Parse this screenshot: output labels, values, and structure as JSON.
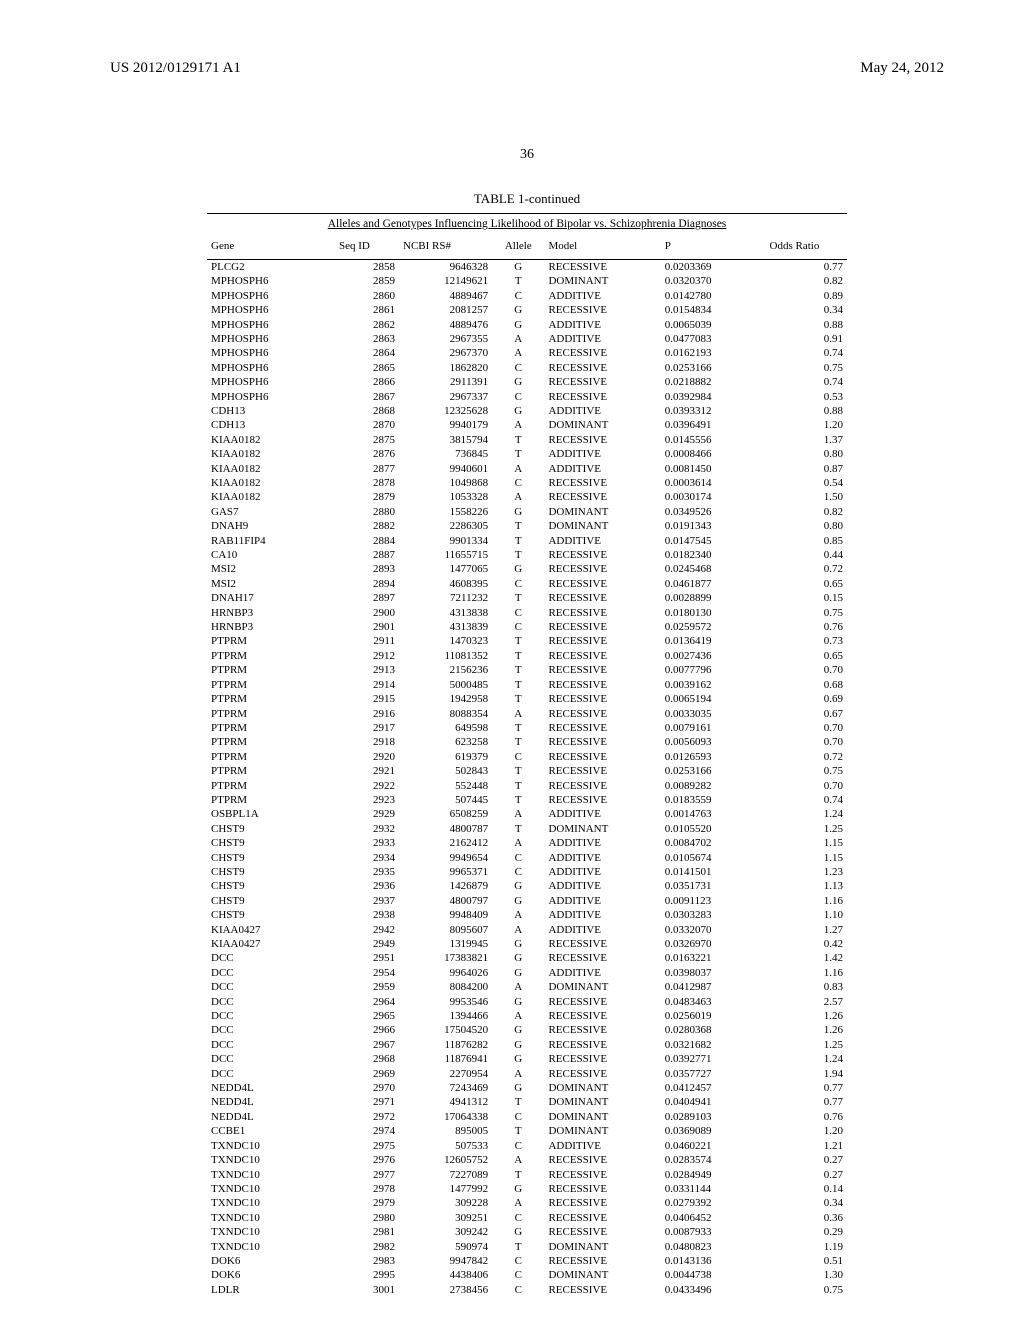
{
  "header": {
    "pub_number": "US 2012/0129171 A1",
    "pub_date": "May 24, 2012"
  },
  "page_number": "36",
  "table": {
    "title": "TABLE 1-continued",
    "caption": "Alleles and Genotypes Influencing Likelihood of Bipolar vs. Schizophrenia Diagnoses",
    "columns": [
      "Gene",
      "Seq ID",
      "NCBI RS#",
      "Allele",
      "Model",
      "P",
      "Odds Ratio"
    ],
    "rows": [
      [
        "PLCG2",
        "2858",
        "9646328",
        "G",
        "RECESSIVE",
        "0.0203369",
        "0.77"
      ],
      [
        "MPHOSPH6",
        "2859",
        "12149621",
        "T",
        "DOMINANT",
        "0.0320370",
        "0.82"
      ],
      [
        "MPHOSPH6",
        "2860",
        "4889467",
        "C",
        "ADDITIVE",
        "0.0142780",
        "0.89"
      ],
      [
        "MPHOSPH6",
        "2861",
        "2081257",
        "G",
        "RECESSIVE",
        "0.0154834",
        "0.34"
      ],
      [
        "MPHOSPH6",
        "2862",
        "4889476",
        "G",
        "ADDITIVE",
        "0.0065039",
        "0.88"
      ],
      [
        "MPHOSPH6",
        "2863",
        "2967355",
        "A",
        "ADDITIVE",
        "0.0477083",
        "0.91"
      ],
      [
        "MPHOSPH6",
        "2864",
        "2967370",
        "A",
        "RECESSIVE",
        "0.0162193",
        "0.74"
      ],
      [
        "MPHOSPH6",
        "2865",
        "1862820",
        "C",
        "RECESSIVE",
        "0.0253166",
        "0.75"
      ],
      [
        "MPHOSPH6",
        "2866",
        "2911391",
        "G",
        "RECESSIVE",
        "0.0218882",
        "0.74"
      ],
      [
        "MPHOSPH6",
        "2867",
        "2967337",
        "C",
        "RECESSIVE",
        "0.0392984",
        "0.53"
      ],
      [
        "CDH13",
        "2868",
        "12325628",
        "G",
        "ADDITIVE",
        "0.0393312",
        "0.88"
      ],
      [
        "CDH13",
        "2870",
        "9940179",
        "A",
        "DOMINANT",
        "0.0396491",
        "1.20"
      ],
      [
        "KIAA0182",
        "2875",
        "3815794",
        "T",
        "RECESSIVE",
        "0.0145556",
        "1.37"
      ],
      [
        "KIAA0182",
        "2876",
        "736845",
        "T",
        "ADDITIVE",
        "0.0008466",
        "0.80"
      ],
      [
        "KIAA0182",
        "2877",
        "9940601",
        "A",
        "ADDITIVE",
        "0.0081450",
        "0.87"
      ],
      [
        "KIAA0182",
        "2878",
        "1049868",
        "C",
        "RECESSIVE",
        "0.0003614",
        "0.54"
      ],
      [
        "KIAA0182",
        "2879",
        "1053328",
        "A",
        "RECESSIVE",
        "0.0030174",
        "1.50"
      ],
      [
        "GAS7",
        "2880",
        "1558226",
        "G",
        "DOMINANT",
        "0.0349526",
        "0.82"
      ],
      [
        "DNAH9",
        "2882",
        "2286305",
        "T",
        "DOMINANT",
        "0.0191343",
        "0.80"
      ],
      [
        "RAB11FIP4",
        "2884",
        "9901334",
        "T",
        "ADDITIVE",
        "0.0147545",
        "0.85"
      ],
      [
        "CA10",
        "2887",
        "11655715",
        "T",
        "RECESSIVE",
        "0.0182340",
        "0.44"
      ],
      [
        "MSI2",
        "2893",
        "1477065",
        "G",
        "RECESSIVE",
        "0.0245468",
        "0.72"
      ],
      [
        "MSI2",
        "2894",
        "4608395",
        "C",
        "RECESSIVE",
        "0.0461877",
        "0.65"
      ],
      [
        "DNAH17",
        "2897",
        "7211232",
        "T",
        "RECESSIVE",
        "0.0028899",
        "0.15"
      ],
      [
        "HRNBP3",
        "2900",
        "4313838",
        "C",
        "RECESSIVE",
        "0.0180130",
        "0.75"
      ],
      [
        "HRNBP3",
        "2901",
        "4313839",
        "C",
        "RECESSIVE",
        "0.0259572",
        "0.76"
      ],
      [
        "PTPRM",
        "2911",
        "1470323",
        "T",
        "RECESSIVE",
        "0.0136419",
        "0.73"
      ],
      [
        "PTPRM",
        "2912",
        "11081352",
        "T",
        "RECESSIVE",
        "0.0027436",
        "0.65"
      ],
      [
        "PTPRM",
        "2913",
        "2156236",
        "T",
        "RECESSIVE",
        "0.0077796",
        "0.70"
      ],
      [
        "PTPRM",
        "2914",
        "5000485",
        "T",
        "RECESSIVE",
        "0.0039162",
        "0.68"
      ],
      [
        "PTPRM",
        "2915",
        "1942958",
        "T",
        "RECESSIVE",
        "0.0065194",
        "0.69"
      ],
      [
        "PTPRM",
        "2916",
        "8088354",
        "A",
        "RECESSIVE",
        "0.0033035",
        "0.67"
      ],
      [
        "PTPRM",
        "2917",
        "649598",
        "T",
        "RECESSIVE",
        "0.0079161",
        "0.70"
      ],
      [
        "PTPRM",
        "2918",
        "623258",
        "T",
        "RECESSIVE",
        "0.0056093",
        "0.70"
      ],
      [
        "PTPRM",
        "2920",
        "619379",
        "C",
        "RECESSIVE",
        "0.0126593",
        "0.72"
      ],
      [
        "PTPRM",
        "2921",
        "502843",
        "T",
        "RECESSIVE",
        "0.0253166",
        "0.75"
      ],
      [
        "PTPRM",
        "2922",
        "552448",
        "T",
        "RECESSIVE",
        "0.0089282",
        "0.70"
      ],
      [
        "PTPRM",
        "2923",
        "507445",
        "T",
        "RECESSIVE",
        "0.0183559",
        "0.74"
      ],
      [
        "OSBPL1A",
        "2929",
        "6508259",
        "A",
        "ADDITIVE",
        "0.0014763",
        "1.24"
      ],
      [
        "CHST9",
        "2932",
        "4800787",
        "T",
        "DOMINANT",
        "0.0105520",
        "1.25"
      ],
      [
        "CHST9",
        "2933",
        "2162412",
        "A",
        "ADDITIVE",
        "0.0084702",
        "1.15"
      ],
      [
        "CHST9",
        "2934",
        "9949654",
        "C",
        "ADDITIVE",
        "0.0105674",
        "1.15"
      ],
      [
        "CHST9",
        "2935",
        "9965371",
        "C",
        "ADDITIVE",
        "0.0141501",
        "1.23"
      ],
      [
        "CHST9",
        "2936",
        "1426879",
        "G",
        "ADDITIVE",
        "0.0351731",
        "1.13"
      ],
      [
        "CHST9",
        "2937",
        "4800797",
        "G",
        "ADDITIVE",
        "0.0091123",
        "1.16"
      ],
      [
        "CHST9",
        "2938",
        "9948409",
        "A",
        "ADDITIVE",
        "0.0303283",
        "1.10"
      ],
      [
        "KIAA0427",
        "2942",
        "8095607",
        "A",
        "ADDITIVE",
        "0.0332070",
        "1.27"
      ],
      [
        "KIAA0427",
        "2949",
        "1319945",
        "G",
        "RECESSIVE",
        "0.0326970",
        "0.42"
      ],
      [
        "DCC",
        "2951",
        "17383821",
        "G",
        "RECESSIVE",
        "0.0163221",
        "1.42"
      ],
      [
        "DCC",
        "2954",
        "9964026",
        "G",
        "ADDITIVE",
        "0.0398037",
        "1.16"
      ],
      [
        "DCC",
        "2959",
        "8084200",
        "A",
        "DOMINANT",
        "0.0412987",
        "0.83"
      ],
      [
        "DCC",
        "2964",
        "9953546",
        "G",
        "RECESSIVE",
        "0.0483463",
        "2.57"
      ],
      [
        "DCC",
        "2965",
        "1394466",
        "A",
        "RECESSIVE",
        "0.0256019",
        "1.26"
      ],
      [
        "DCC",
        "2966",
        "17504520",
        "G",
        "RECESSIVE",
        "0.0280368",
        "1.26"
      ],
      [
        "DCC",
        "2967",
        "11876282",
        "G",
        "RECESSIVE",
        "0.0321682",
        "1.25"
      ],
      [
        "DCC",
        "2968",
        "11876941",
        "G",
        "RECESSIVE",
        "0.0392771",
        "1.24"
      ],
      [
        "DCC",
        "2969",
        "2270954",
        "A",
        "RECESSIVE",
        "0.0357727",
        "1.94"
      ],
      [
        "NEDD4L",
        "2970",
        "7243469",
        "G",
        "DOMINANT",
        "0.0412457",
        "0.77"
      ],
      [
        "NEDD4L",
        "2971",
        "4941312",
        "T",
        "DOMINANT",
        "0.0404941",
        "0.77"
      ],
      [
        "NEDD4L",
        "2972",
        "17064338",
        "C",
        "DOMINANT",
        "0.0289103",
        "0.76"
      ],
      [
        "CCBE1",
        "2974",
        "895005",
        "T",
        "DOMINANT",
        "0.0369089",
        "1.20"
      ],
      [
        "TXNDC10",
        "2975",
        "507533",
        "C",
        "ADDITIVE",
        "0.0460221",
        "1.21"
      ],
      [
        "TXNDC10",
        "2976",
        "12605752",
        "A",
        "RECESSIVE",
        "0.0283574",
        "0.27"
      ],
      [
        "TXNDC10",
        "2977",
        "7227089",
        "T",
        "RECESSIVE",
        "0.0284949",
        "0.27"
      ],
      [
        "TXNDC10",
        "2978",
        "1477992",
        "G",
        "RECESSIVE",
        "0.0331144",
        "0.14"
      ],
      [
        "TXNDC10",
        "2979",
        "309228",
        "A",
        "RECESSIVE",
        "0.0279392",
        "0.34"
      ],
      [
        "TXNDC10",
        "2980",
        "309251",
        "C",
        "RECESSIVE",
        "0.0406452",
        "0.36"
      ],
      [
        "TXNDC10",
        "2981",
        "309242",
        "G",
        "RECESSIVE",
        "0.0087933",
        "0.29"
      ],
      [
        "TXNDC10",
        "2982",
        "590974",
        "T",
        "DOMINANT",
        "0.0480823",
        "1.19"
      ],
      [
        "DOK6",
        "2983",
        "9947842",
        "C",
        "RECESSIVE",
        "0.0143136",
        "0.51"
      ],
      [
        "DOK6",
        "2995",
        "4438406",
        "C",
        "DOMINANT",
        "0.0044738",
        "1.30"
      ],
      [
        "LDLR",
        "3001",
        "2738456",
        "C",
        "RECESSIVE",
        "0.0433496",
        "0.75"
      ]
    ]
  }
}
